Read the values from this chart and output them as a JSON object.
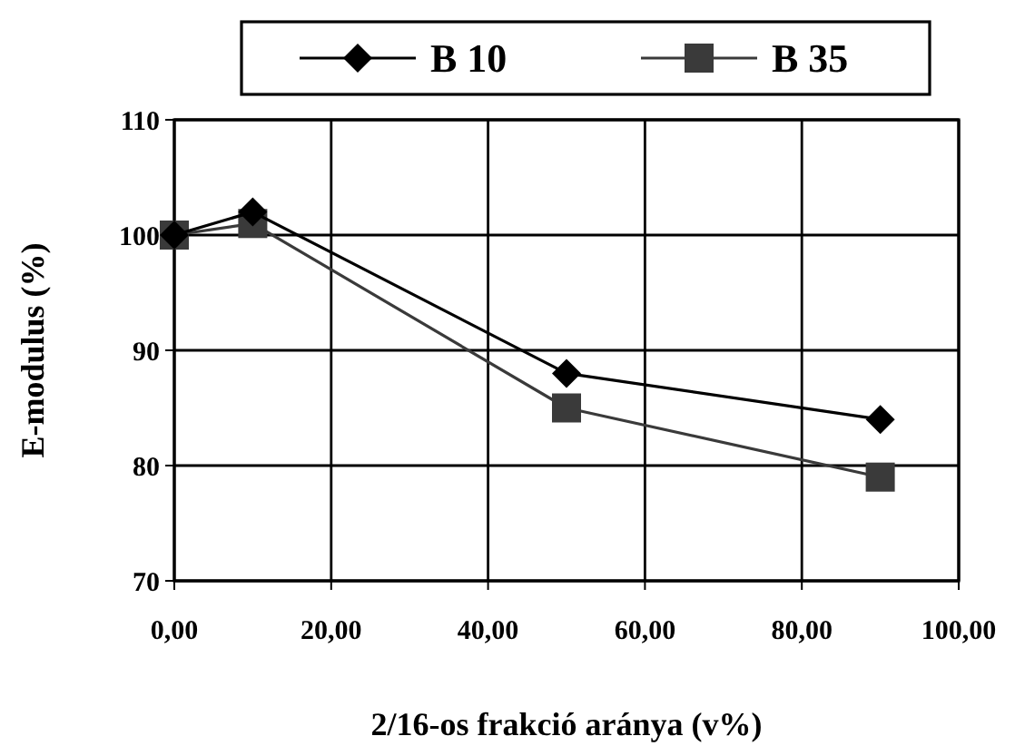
{
  "chart_data": {
    "type": "line",
    "xlabel": "2/16-os frakció aránya (v%)",
    "ylabel": "E-modulus (%)",
    "x": [
      0,
      10,
      50,
      90
    ],
    "series": [
      {
        "name": "B 10",
        "color": "#000000",
        "marker": "diamond",
        "values": [
          100,
          102,
          88,
          84
        ]
      },
      {
        "name": "B 35",
        "color": "#3a3a3a",
        "marker": "square",
        "values": [
          100,
          101,
          85,
          79
        ]
      }
    ],
    "xlim": [
      0,
      100
    ],
    "xticks": [
      {
        "value": 0,
        "label": "0,00"
      },
      {
        "value": 20,
        "label": "20,00"
      },
      {
        "value": 40,
        "label": "40,00"
      },
      {
        "value": 60,
        "label": "60,00"
      },
      {
        "value": 80,
        "label": "80,00"
      },
      {
        "value": 100,
        "label": "100,00"
      }
    ],
    "ylim": [
      70,
      110
    ],
    "yticks": [
      70,
      80,
      90,
      100,
      110
    ],
    "grid": true,
    "legend": "top",
    "line_style": "solid"
  }
}
